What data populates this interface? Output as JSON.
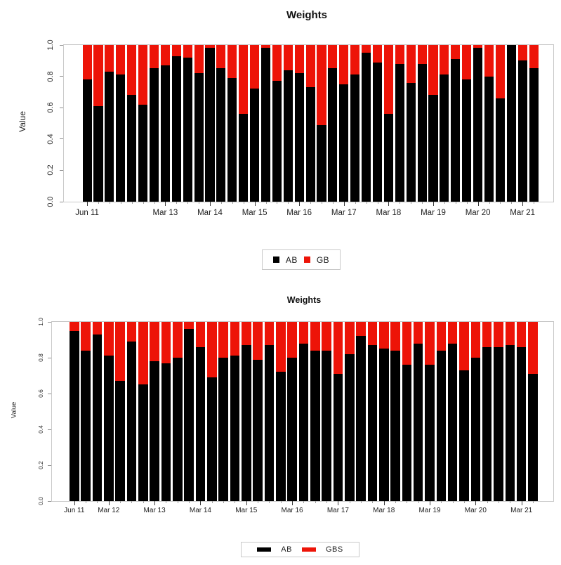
{
  "page": {
    "background": "#ffffff"
  },
  "chart_data": [
    {
      "type": "bar",
      "stacked": true,
      "title": "Weights",
      "ylabel": "Value",
      "ylim": [
        0,
        1
      ],
      "grid": false,
      "legend_position": "bottom-center",
      "yticks": [
        "1.0",
        "0.8",
        "0.6",
        "0.4",
        "0.2",
        "0.0"
      ],
      "n_bars": 41,
      "x_tick_labels": [
        "Jun 11",
        "Mar 13",
        "Mar 14",
        "Mar 15",
        "Mar 16",
        "Mar 17",
        "Mar 18",
        "Mar 19",
        "Mar 20",
        "Mar 21"
      ],
      "x_tick_bar_indices": [
        0,
        7,
        11,
        15,
        19,
        23,
        27,
        31,
        35,
        39
      ],
      "series": [
        {
          "name": "AB",
          "color": "#000000",
          "values": [
            0.78,
            0.61,
            0.83,
            0.81,
            0.68,
            0.62,
            0.85,
            0.87,
            0.93,
            0.92,
            0.82,
            0.98,
            0.85,
            0.79,
            0.56,
            0.72,
            0.98,
            0.77,
            0.84,
            0.82,
            0.73,
            0.49,
            0.85,
            0.75,
            0.81,
            0.95,
            0.89,
            0.56,
            0.88,
            0.76,
            0.88,
            0.68,
            0.81,
            0.91,
            0.78,
            0.98,
            0.8,
            0.66,
            1.0,
            0.9,
            0.85
          ]
        },
        {
          "name": "GB",
          "color": "#ed1408",
          "values": [
            0.22,
            0.39,
            0.17,
            0.19,
            0.32,
            0.38,
            0.15,
            0.13,
            0.07,
            0.08,
            0.18,
            0.02,
            0.15,
            0.21,
            0.44,
            0.28,
            0.02,
            0.23,
            0.16,
            0.18,
            0.27,
            0.51,
            0.15,
            0.25,
            0.19,
            0.05,
            0.11,
            0.44,
            0.12,
            0.24,
            0.12,
            0.32,
            0.19,
            0.09,
            0.22,
            0.02,
            0.2,
            0.34,
            0.0,
            0.1,
            0.15
          ]
        }
      ]
    },
    {
      "type": "bar",
      "stacked": true,
      "title": "Weights",
      "ylabel": "Value",
      "ylim": [
        0,
        1
      ],
      "grid": false,
      "legend_position": "bottom-center",
      "yticks": [
        "1.0",
        "0.8",
        "0.6",
        "0.4",
        "0.2",
        "0.0"
      ],
      "n_bars": 41,
      "x_tick_labels": [
        "Jun 11",
        "Mar 12",
        "Mar 13",
        "Mar 14",
        "Mar 15",
        "Mar 16",
        "Mar 17",
        "Mar 18",
        "Mar 19",
        "Mar 20",
        "Mar 21"
      ],
      "x_tick_bar_indices": [
        0,
        3,
        7,
        11,
        15,
        19,
        23,
        27,
        31,
        35,
        39
      ],
      "series": [
        {
          "name": "AB",
          "color": "#000000",
          "values": [
            0.95,
            0.84,
            0.93,
            0.81,
            0.67,
            0.89,
            0.65,
            0.78,
            0.77,
            0.8,
            0.96,
            0.86,
            0.69,
            0.8,
            0.81,
            0.87,
            0.79,
            0.87,
            0.72,
            0.8,
            0.88,
            0.84,
            0.84,
            0.71,
            0.82,
            0.92,
            0.87,
            0.85,
            0.84,
            0.76,
            0.88,
            0.76,
            0.84,
            0.88,
            0.73,
            0.8,
            0.86,
            0.86,
            0.87,
            0.86,
            0.71
          ]
        },
        {
          "name": "GBS",
          "color": "#ed1408",
          "values": [
            0.05,
            0.16,
            0.07,
            0.19,
            0.33,
            0.11,
            0.35,
            0.22,
            0.23,
            0.2,
            0.04,
            0.14,
            0.31,
            0.2,
            0.19,
            0.13,
            0.21,
            0.13,
            0.28,
            0.2,
            0.12,
            0.16,
            0.16,
            0.29,
            0.18,
            0.08,
            0.13,
            0.15,
            0.16,
            0.24,
            0.12,
            0.24,
            0.16,
            0.12,
            0.27,
            0.2,
            0.14,
            0.14,
            0.13,
            0.14,
            0.29
          ]
        }
      ]
    }
  ]
}
